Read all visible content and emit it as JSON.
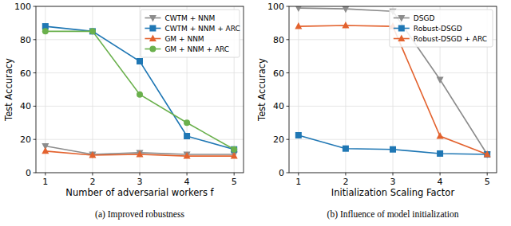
{
  "chart_data": [
    {
      "type": "line",
      "title": "(a) Improved robustness",
      "x_label": "Number of adversarial workers f",
      "y_label": "Test Accuracy",
      "x": [
        1,
        2,
        3,
        4,
        5
      ],
      "xlim": [
        0.8,
        5.2
      ],
      "xticks": [
        1,
        2,
        3,
        4,
        5
      ],
      "ylim": [
        0,
        100
      ],
      "yticks": [
        0,
        20,
        40,
        60,
        80,
        100
      ],
      "grid": true,
      "legend": "upper right",
      "series": [
        {
          "name": "CWTM + NNM",
          "color": "#8c8c8c",
          "marker": "triangle-down",
          "values": [
            16,
            11,
            12,
            11,
            11
          ]
        },
        {
          "name": "CWTM + NNM + ARC",
          "color": "#1f77b4",
          "marker": "square",
          "values": [
            88,
            85,
            67,
            22,
            14
          ]
        },
        {
          "name": "GM + NNM",
          "color": "#e3622e",
          "marker": "triangle-up",
          "values": [
            13,
            10.5,
            11,
            10,
            10
          ]
        },
        {
          "name": "GM + NNM + ARC",
          "color": "#6ab04c",
          "marker": "circle",
          "values": [
            85,
            85,
            47,
            30,
            14
          ]
        }
      ]
    },
    {
      "type": "line",
      "title": "(b) Influence of model initialization",
      "x_label": "Initialization Scaling Factor",
      "y_label": "Test Accuracy",
      "x": [
        1,
        2,
        3,
        4,
        5
      ],
      "xlim": [
        0.8,
        5.2
      ],
      "xticks": [
        1,
        2,
        3,
        4,
        5
      ],
      "ylim": [
        0,
        100
      ],
      "yticks": [
        0,
        20,
        40,
        60,
        80,
        100
      ],
      "grid": true,
      "legend": "upper right",
      "series": [
        {
          "name": "DSGD",
          "color": "#8c8c8c",
          "marker": "triangle-down",
          "values": [
            99,
            98.5,
            97,
            56,
            11
          ]
        },
        {
          "name": "Robust-DSGD",
          "color": "#1f77b4",
          "marker": "square",
          "values": [
            22.5,
            14.5,
            14,
            11.5,
            11
          ]
        },
        {
          "name": "Robust-DSGD + ARC",
          "color": "#e3622e",
          "marker": "triangle-up",
          "values": [
            88,
            88.5,
            88,
            22,
            11
          ]
        }
      ]
    }
  ]
}
